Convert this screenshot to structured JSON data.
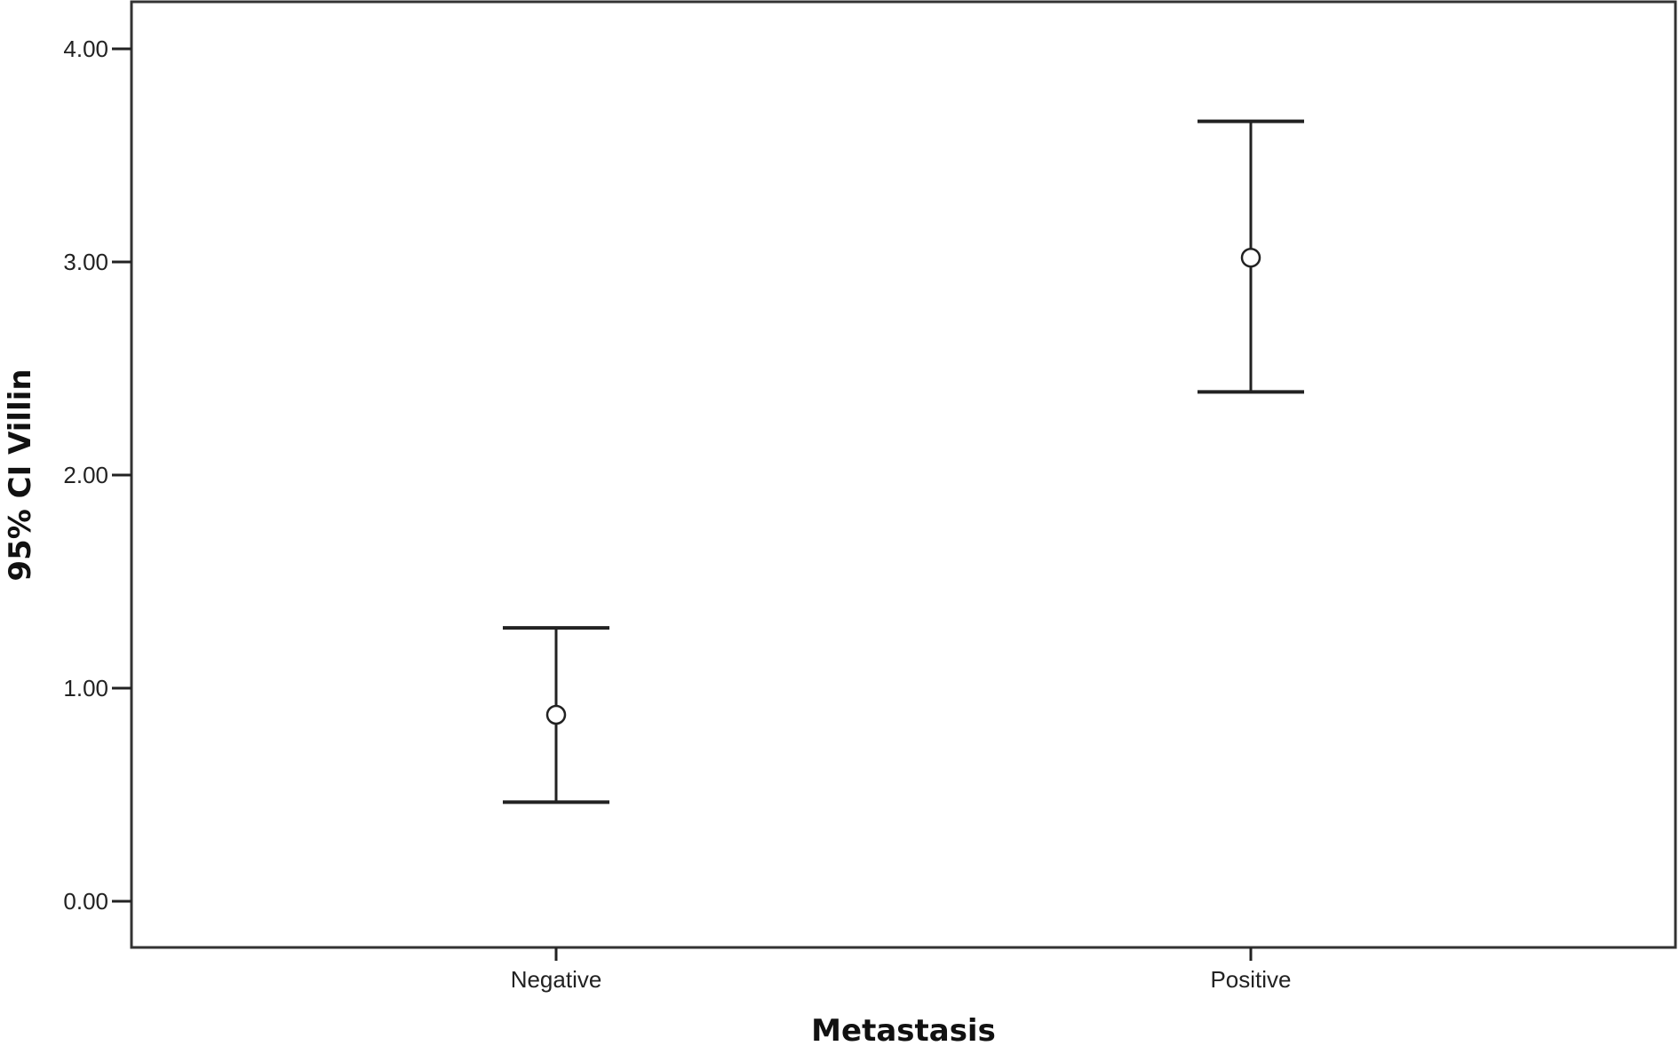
{
  "chart_data": {
    "type": "errorbar",
    "title": "",
    "xlabel": "Metastasis",
    "ylabel": "95% CI Villin",
    "categories": [
      "Negative",
      "Positive"
    ],
    "series": [
      {
        "name": "Villin",
        "mean": [
          0.875,
          3.02
        ],
        "ci_lower": [
          0.465,
          2.39
        ],
        "ci_upper": [
          1.283,
          3.66
        ]
      }
    ],
    "ylim": [
      -0.22,
      4.22
    ],
    "yticks": [
      0,
      1,
      2,
      3,
      4
    ],
    "ytick_labels": [
      "0.00",
      "1.00",
      "2.00",
      "3.00",
      "4.00"
    ],
    "grid": false,
    "colors": {
      "line": "#222222",
      "frame": "#333333"
    }
  }
}
